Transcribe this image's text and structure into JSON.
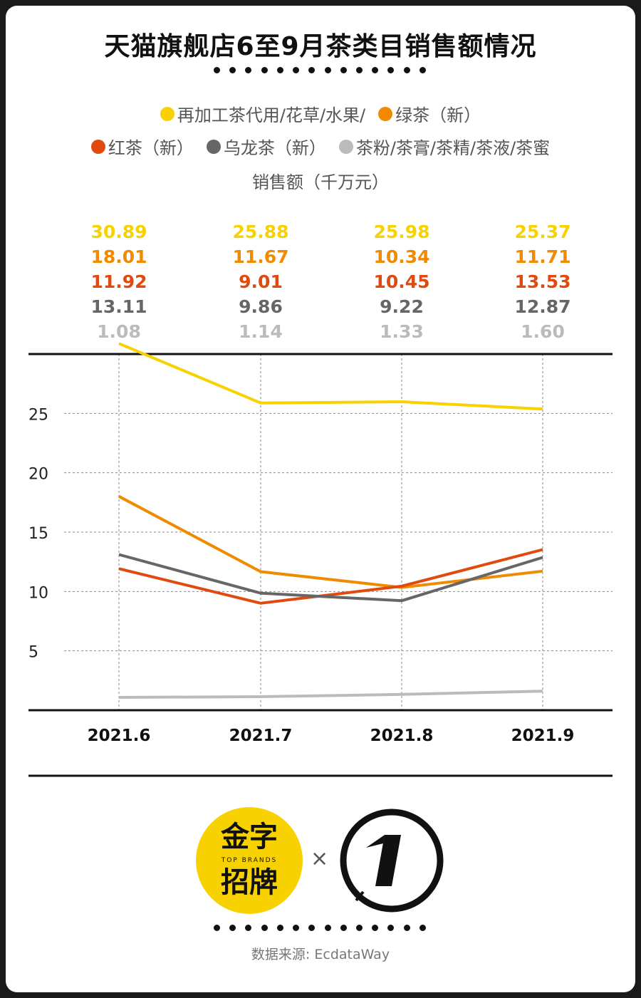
{
  "title": "天猫旗舰店6至9月茶类目销售额情况",
  "legend": [
    {
      "label": "再加工茶代用/花草/水果/",
      "color": "#f7d200"
    },
    {
      "label": "绿茶（新）",
      "color": "#f08a00"
    },
    {
      "label": "红茶（新）",
      "color": "#e04a0e"
    },
    {
      "label": "乌龙茶（新）",
      "color": "#666666"
    },
    {
      "label": "茶粉/茶膏/茶精/茶液/茶蜜",
      "color": "#bbbbbb"
    }
  ],
  "unit_label": "销售额（千万元）",
  "chart_data": {
    "type": "line",
    "categories": [
      "2021.6",
      "2021.7",
      "2021.8",
      "2021.9"
    ],
    "ylabel": "销售额（千万元）",
    "ylim": [
      0,
      30
    ],
    "yticks": [
      5,
      10,
      15,
      20,
      25
    ],
    "grid": true,
    "series": [
      {
        "name": "再加工茶代用/花草/水果/",
        "color": "#f7d200",
        "values": [
          30.89,
          25.88,
          25.98,
          25.37
        ]
      },
      {
        "name": "绿茶（新）",
        "color": "#f08a00",
        "values": [
          18.01,
          11.67,
          10.34,
          11.71
        ]
      },
      {
        "name": "红茶（新）",
        "color": "#e04a0e",
        "values": [
          11.92,
          9.01,
          10.45,
          13.53
        ]
      },
      {
        "name": "乌龙茶（新）",
        "color": "#666666",
        "values": [
          13.11,
          9.86,
          9.22,
          12.87
        ]
      },
      {
        "name": "茶粉/茶膏/茶精/茶液/茶蜜",
        "color": "#bbbbbb",
        "values": [
          1.08,
          1.14,
          1.33,
          1.6
        ]
      }
    ]
  },
  "labels": [
    [
      "30.89",
      "25.88",
      "25.98",
      "25.37"
    ],
    [
      "18.01",
      "11.67",
      "10.34",
      "11.71"
    ],
    [
      "11.92",
      "9.01",
      "10.45",
      "13.53"
    ],
    [
      "13.11",
      "9.86",
      "9.22",
      "12.87"
    ],
    [
      "1.08",
      "1.14",
      "1.33",
      "1.60"
    ]
  ],
  "logos": {
    "left_line1": "金字",
    "left_line2": "招牌",
    "left_sub": "TOP BRANDS",
    "times": "×",
    "right_mark": "1"
  },
  "source": "数据来源: EcdataWay"
}
